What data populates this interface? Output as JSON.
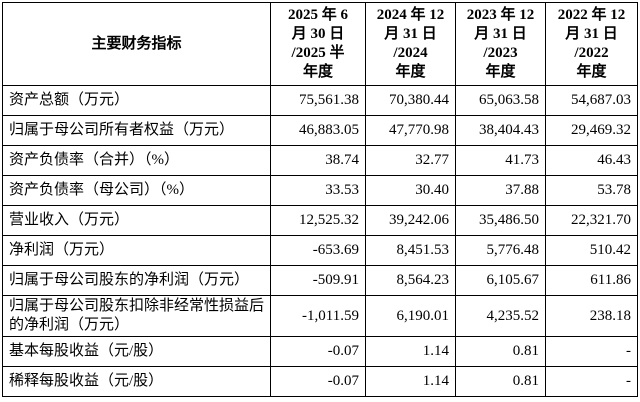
{
  "table": {
    "header": {
      "label": "主要财务指标",
      "columns": [
        [
          "2025 年 6",
          "月 30 日",
          "/2025 半",
          "年度"
        ],
        [
          "2024 年 12",
          "月 31 日",
          "/2024",
          "年度"
        ],
        [
          "2023 年 12",
          "月 31 日",
          "/2023",
          "年度"
        ],
        [
          "2022 年 12",
          "月 31 日",
          "/2022",
          "年度"
        ]
      ]
    },
    "rows": [
      [
        "资产总额（万元）",
        "75,561.38",
        "70,380.44",
        "65,063.58",
        "54,687.03"
      ],
      [
        "归属于母公司所有者权益（万元）",
        "46,883.05",
        "47,770.98",
        "38,404.43",
        "29,469.32"
      ],
      [
        "资产负债率（合并）（%）",
        "38.74",
        "32.77",
        "41.73",
        "46.43"
      ],
      [
        "资产负债率（母公司）（%）",
        "33.53",
        "30.40",
        "37.88",
        "53.78"
      ],
      [
        "营业收入（万元）",
        "12,525.32",
        "39,242.06",
        "35,486.50",
        "22,321.70"
      ],
      [
        "净利润（万元）",
        "-653.69",
        "8,451.53",
        "5,776.48",
        "510.42"
      ],
      [
        "归属于母公司股东的净利润（万元）",
        "-509.91",
        "8,564.23",
        "6,105.67",
        "611.86"
      ],
      [
        "归属于母公司股东扣除非经常性损益后的净利润（万元）",
        "-1,011.59",
        "6,190.01",
        "4,235.52",
        "238.18"
      ],
      [
        "基本每股收益（元/股）",
        "-0.07",
        "1.14",
        "0.81",
        "-"
      ],
      [
        "稀释每股收益（元/股）",
        "-0.07",
        "1.14",
        "0.81",
        "-"
      ]
    ]
  }
}
